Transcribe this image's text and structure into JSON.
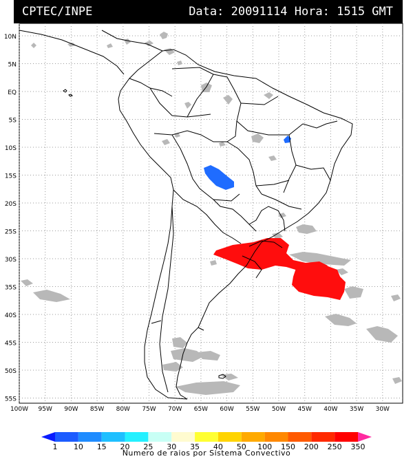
{
  "header": {
    "source": "CPTEC/INPE",
    "datetime": "Data: 20091114 Hora: 1515 GMT"
  },
  "map": {
    "lat_labels": [
      "10N",
      "5N",
      "EQ",
      "5S",
      "10S",
      "15S",
      "20S",
      "25S",
      "30S",
      "35S",
      "40S",
      "45S",
      "50S",
      "55S"
    ],
    "lon_labels": [
      "100W",
      "95W",
      "90W",
      "85W",
      "80W",
      "75W",
      "70W",
      "65W",
      "60W",
      "55W",
      "50W",
      "45W",
      "40W",
      "35W",
      "30W"
    ],
    "land_color": "#ffffff",
    "border_color": "#000000",
    "grid_style": "dotted"
  },
  "legend": {
    "caption": "Numero de raios por Sistema Convectivo",
    "ticks": [
      "1",
      "10",
      "15",
      "20",
      "25",
      "30",
      "35",
      "40",
      "50",
      "100",
      "150",
      "200",
      "250",
      "350"
    ],
    "colors": [
      "#0a1cff",
      "#1c5cff",
      "#1f8cff",
      "#1fbfff",
      "#24f0ff",
      "#c8fff5",
      "#fffbd0",
      "#ffff33",
      "#ffd400",
      "#ffaa00",
      "#ff8800",
      "#ff5a00",
      "#ff2a00",
      "#ff0000",
      "#ff2aa0"
    ]
  },
  "systems": [
    {
      "type": "cloud",
      "color": "#b8b8b8"
    },
    {
      "type": "lightning",
      "count_range": "15",
      "color": "#1f6cff"
    },
    {
      "type": "lightning",
      "count_range": "250-350",
      "color": "#ff0d0d"
    }
  ]
}
